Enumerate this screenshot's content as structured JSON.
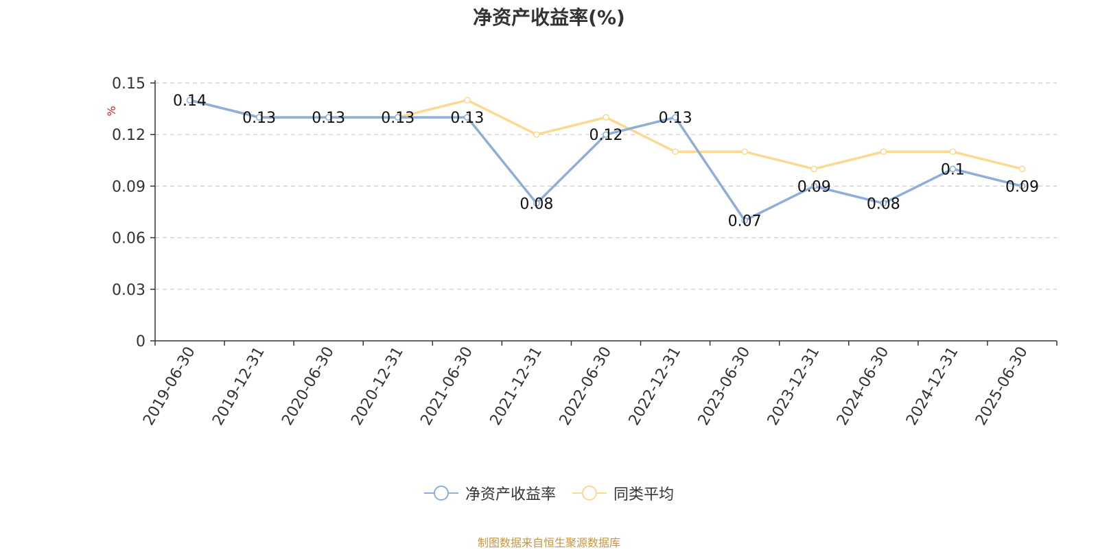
{
  "chart_data": {
    "type": "line",
    "title": "净资产收益率(%)",
    "ylabel": "%",
    "ylim": [
      0,
      0.15
    ],
    "yticks": [
      "0",
      "0.03",
      "0.06",
      "0.09",
      "0.12",
      "0.15"
    ],
    "x": [
      "2019-06-30",
      "2019-12-31",
      "2020-06-30",
      "2020-12-31",
      "2021-06-30",
      "2021-12-31",
      "2022-06-30",
      "2022-12-31",
      "2023-06-30",
      "2023-12-31",
      "2024-06-30",
      "2024-12-31",
      "2025-06-30"
    ],
    "grid": true,
    "legend_position": "bottom",
    "series": [
      {
        "name": "净资产收益率",
        "color": "#8eaed8",
        "values": [
          0.14,
          0.13,
          0.13,
          0.13,
          0.13,
          0.08,
          0.12,
          0.13,
          0.07,
          0.09,
          0.08,
          0.1,
          0.09
        ],
        "labels": [
          "0.14",
          "0.13",
          "0.13",
          "0.13",
          "0.13",
          "0.08",
          "0.12",
          "0.13",
          "0.07",
          "0.09",
          "0.08",
          "0.1",
          "0.09"
        ]
      },
      {
        "name": "同类平均",
        "color": "#fbd991",
        "values": [
          0.14,
          0.13,
          0.13,
          0.13,
          0.14,
          0.12,
          0.13,
          0.11,
          0.11,
          0.1,
          0.11,
          0.11,
          0.1
        ]
      }
    ]
  },
  "source_note": "制图数据来自恒生聚源数据库"
}
